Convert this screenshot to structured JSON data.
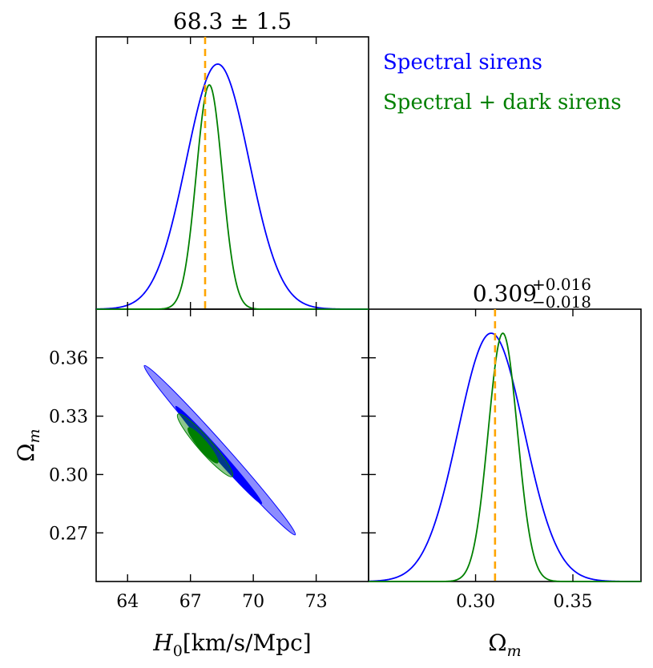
{
  "chart_data": {
    "type": "corner",
    "colors": {
      "spectral": "#0000ff",
      "combined": "#008000",
      "truth": "#ffa500"
    },
    "legend": {
      "placement": "top-right",
      "entries": [
        {
          "label": "Spectral sirens",
          "color": "#0000ff"
        },
        {
          "label": "Spectral + dark sirens",
          "color": "#008000"
        }
      ]
    },
    "H0": {
      "title": "68.3 ± 1.5",
      "xlabel": "H",
      "xlabel_sub": "0",
      "xlabel_units": "[km/s/Mpc]",
      "range": [
        62.5,
        75.5
      ],
      "ticks": [
        64,
        67,
        70,
        73
      ],
      "tick_labels": [
        "64",
        "67",
        "70",
        "73"
      ],
      "truth": 67.7,
      "series": [
        {
          "name": "Spectral sirens",
          "mean": 68.3,
          "sigma": 1.5
        },
        {
          "name": "Spectral + dark sirens",
          "mean": 67.9,
          "sigma": 0.62
        }
      ]
    },
    "Om": {
      "title_center": "0.309",
      "title_plus": "+0.016",
      "title_minus": "−0.018",
      "xlabel": "Ω",
      "xlabel_sub": "m",
      "ylabel": "Ω",
      "ylabel_sub": "m",
      "range": [
        0.245,
        0.385
      ],
      "ticks_x": [
        0.3,
        0.35
      ],
      "tick_labels_x": [
        "0.30",
        "0.35"
      ],
      "ticks_y": [
        0.27,
        0.3,
        0.33,
        0.36
      ],
      "tick_labels_y": [
        "0.27",
        "0.30",
        "0.33",
        "0.36"
      ],
      "truth": 0.31,
      "series": [
        {
          "name": "Spectral sirens",
          "mean": 0.308,
          "sigma": 0.017
        },
        {
          "name": "Spectral + dark sirens",
          "mean": 0.314,
          "sigma": 0.0075
        }
      ]
    },
    "contours": [
      {
        "series": "Spectral sirens",
        "level": "2-sigma",
        "color": "#0000ff",
        "opacity": 0.45,
        "center": [
          68.4,
          0.312
        ],
        "end1": [
          64.8,
          0.356
        ],
        "end2": [
          72.0,
          0.269
        ],
        "half_width": 0.0035
      },
      {
        "series": "Spectral sirens",
        "level": "1-sigma",
        "color": "#0000ff",
        "opacity": 1.0,
        "center": [
          68.5,
          0.31
        ],
        "end1": [
          66.3,
          0.335
        ],
        "end2": [
          70.4,
          0.285
        ],
        "half_width": 0.0022
      },
      {
        "series": "Spectral + dark sirens",
        "level": "2-sigma",
        "color": "#008000",
        "opacity": 0.45,
        "center": [
          67.6,
          0.315
        ],
        "end1": [
          66.4,
          0.331
        ],
        "end2": [
          69.0,
          0.299
        ],
        "half_width": 0.0036
      },
      {
        "series": "Spectral + dark sirens",
        "level": "1-sigma",
        "color": "#008000",
        "opacity": 1.0,
        "center": [
          67.5,
          0.316
        ],
        "end1": [
          66.9,
          0.324
        ],
        "end2": [
          68.3,
          0.306
        ],
        "half_width": 0.0024
      }
    ]
  }
}
